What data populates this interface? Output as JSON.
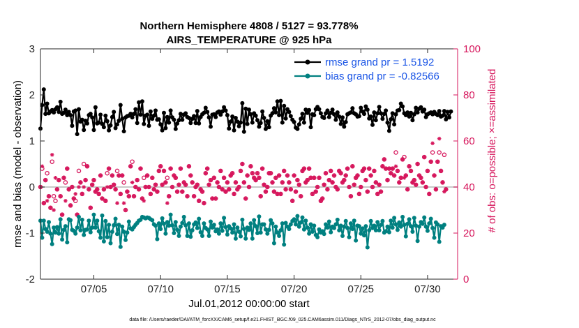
{
  "chart_data": {
    "type": "line",
    "title": "Northern Hemisphere 4808 / 5127 = 93.778%",
    "subtitle": "AIRS_TEMPERATURE @ 925 hPa",
    "xlabel": "Jul.01,2012 00:00:00 start",
    "ylabel": "rmse and bias (model - observation)",
    "ylabel_right": "# of obs: o=possible; ×=assimilated",
    "x_range": [
      1,
      32.25
    ],
    "ylim": [
      -2,
      3
    ],
    "ylim_right": [
      0,
      100
    ],
    "x_tick_positions": [
      5,
      10,
      15,
      20,
      25,
      30
    ],
    "x_tick_labels": [
      "07/05",
      "07/10",
      "07/15",
      "07/20",
      "07/25",
      "07/30"
    ],
    "y_ticks": [
      "-2",
      "-1",
      "0",
      "1",
      "2",
      "3"
    ],
    "y_ticks_right": [
      "0",
      "20",
      "40",
      "60",
      "80",
      "100"
    ],
    "footer": "data file: /Users/raeder/DAI/ATM_forcXX/CAM6_setup/f.e21.FHIST_BGC.f09_025.CAM6assim.011/Diags_NTrS_2012-07/obs_diag_output.nc",
    "colors": {
      "rmse": "#000000",
      "bias": "#008080",
      "obs": "#d6155b",
      "zero_line": "#c8c8c8",
      "legend_text": "#1a55e6"
    },
    "legend": [
      {
        "name": "rmse grand pr = 1.5192",
        "series": "rmse"
      },
      {
        "name": "bias grand pr = -0.82566",
        "series": "bias"
      }
    ],
    "series": [
      {
        "name": "rmse",
        "axis": "left",
        "values": [
          1.27,
          1.78,
          2.12,
          1.59,
          1.81,
          1.6,
          1.64,
          1.67,
          1.62,
          1.69,
          1.73,
          1.63,
          1.85,
          1.59,
          1.61,
          1.68,
          1.56,
          1.63,
          1.56,
          1.33,
          1.64,
          1.66,
          1.15,
          1.69,
          1.42,
          1.46,
          1.24,
          1.44,
          1.38,
          1.56,
          1.59,
          1.51,
          1.24,
          1.73,
          1.38,
          1.4,
          1.57,
          1.37,
          1.3,
          1.55,
          1.43,
          1.23,
          1.34,
          1.52,
          1.63,
          1.28,
          1.36,
          1.44,
          1.78,
          1.48,
          1.21,
          1.51,
          1.54,
          1.55,
          1.59,
          1.51,
          1.59,
          1.69,
          1.39,
          1.84,
          1.57,
          1.86,
          1.37,
          1.55,
          1.57,
          1.33,
          1.64,
          1.48,
          1.55,
          1.66,
          1.46,
          1.47,
          1.36,
          1.23,
          1.61,
          1.28,
          1.52,
          1.4,
          1.66,
          1.51,
          1.46,
          1.26,
          1.38,
          1.45,
          1.59,
          1.46,
          1.57,
          1.6,
          1.52,
          1.5,
          1.39,
          1.48,
          1.54,
          1.39,
          1.65,
          1.38,
          1.52,
          1.58,
          1.61,
          1.72,
          1.63,
          1.51,
          1.31,
          1.57,
          1.58,
          1.52,
          1.62,
          1.64,
          1.57,
          1.64,
          1.73,
          1.66,
          1.56,
          1.27,
          1.42,
          1.53,
          1.23,
          1.5,
          1.42,
          1.32,
          1.4,
          1.82,
          1.2,
          1.7,
          1.37,
          1.68,
          1.58,
          1.4,
          1.6,
          1.55,
          1.45,
          1.31,
          1.39,
          1.64,
          1.5,
          1.26,
          1.43,
          1.3,
          1.55,
          1.6,
          1.71,
          1.62,
          1.86,
          1.56,
          1.87,
          1.4,
          1.76,
          1.49,
          1.69,
          1.63,
          1.54,
          1.46,
          1.41,
          1.29,
          1.26,
          1.36,
          1.48,
          1.59,
          1.4,
          1.68,
          1.61,
          1.67,
          1.3,
          1.58,
          1.56,
          1.69,
          1.74,
          1.69,
          1.6,
          1.52,
          1.5,
          1.6,
          1.66,
          1.52,
          1.61,
          1.68,
          1.58,
          1.46,
          1.62,
          1.53,
          1.37,
          1.51,
          1.31,
          1.41,
          1.58,
          1.6,
          1.62,
          1.71,
          1.6,
          1.58,
          1.53,
          1.54,
          1.72,
          1.64,
          1.59,
          1.75,
          1.68,
          1.49,
          1.53,
          1.35,
          1.62,
          1.45,
          1.6,
          1.74,
          1.6,
          1.48,
          1.59,
          1.66,
          1.4,
          1.22,
          1.47,
          1.6,
          1.36,
          1.58,
          1.66,
          1.67,
          1.81,
          1.75,
          1.6,
          1.56,
          1.62,
          1.53,
          1.61,
          1.45,
          1.58,
          1.72,
          1.62,
          1.7,
          1.73,
          1.64,
          1.68,
          1.52,
          1.58,
          1.6,
          1.62,
          1.58,
          1.63,
          1.59,
          1.56,
          1.65,
          1.53,
          1.55,
          1.65,
          1.47,
          1.63,
          1.51,
          1.64
        ]
      },
      {
        "name": "bias",
        "axis": "left",
        "values": [
          -0.73,
          -1.1,
          -0.73,
          -0.91,
          -0.97,
          -0.76,
          -1.01,
          -1.24,
          -0.88,
          -0.99,
          -0.87,
          -1.01,
          -0.7,
          -1.14,
          -0.93,
          -0.85,
          -1.2,
          -0.7,
          -0.72,
          -0.93,
          -0.95,
          -1.01,
          -0.88,
          -0.65,
          -0.94,
          -0.71,
          -1.04,
          -0.93,
          -0.92,
          -0.73,
          -0.98,
          -0.88,
          -0.6,
          -0.88,
          -0.73,
          -0.96,
          -1.1,
          -0.62,
          -1.18,
          -0.74,
          -1.09,
          -0.82,
          -1.22,
          -0.97,
          -0.83,
          -0.69,
          -1.02,
          -0.82,
          -1.3,
          -0.86,
          -0.97,
          -1.15,
          -0.99,
          -0.75,
          -0.9,
          -0.92,
          -0.87,
          -0.82,
          -0.78,
          -0.73,
          -0.71,
          -0.65,
          -0.66,
          -0.68,
          -0.66,
          -0.67,
          -0.7,
          -0.72,
          -0.81,
          -0.84,
          -1.13,
          -0.79,
          -0.91,
          -0.68,
          -0.8,
          -1.01,
          -0.76,
          -0.84,
          -0.6,
          -0.83,
          -1.0,
          -0.76,
          -0.93,
          -1.06,
          -0.86,
          -0.78,
          -0.65,
          -0.83,
          -1.06,
          -0.79,
          -1.08,
          -0.94,
          -0.81,
          -0.77,
          -0.89,
          -0.69,
          -0.98,
          -1.06,
          -0.79,
          -0.89,
          -0.92,
          -1.06,
          -0.75,
          -0.88,
          -0.82,
          -0.96,
          -0.92,
          -1.01,
          -0.79,
          -0.95,
          -0.67,
          -0.87,
          -1.03,
          -0.85,
          -0.9,
          -0.99,
          -0.81,
          -1.12,
          -0.88,
          -0.97,
          -1.07,
          -0.71,
          -0.91,
          -1.12,
          -0.88,
          -0.93,
          -0.79,
          -1.12,
          -0.72,
          -0.85,
          -1.0,
          -0.64,
          -0.99,
          -0.81,
          -0.81,
          -0.92,
          -1.01,
          -0.93,
          -0.72,
          -0.79,
          -1.22,
          -0.86,
          -0.99,
          -1.06,
          -0.94,
          -0.79,
          -1.25,
          -0.78,
          -0.86,
          -0.91,
          -0.81,
          -0.74,
          -0.7,
          -0.81,
          -0.63,
          -0.86,
          -0.77,
          -0.66,
          -0.92,
          -0.73,
          -0.88,
          -1.01,
          -0.81,
          -0.97,
          -0.84,
          -1.04,
          -1.09,
          -0.92,
          -0.99,
          -0.96,
          -1.02,
          -0.81,
          -0.88,
          -0.75,
          -0.98,
          -0.86,
          -0.89,
          -0.81,
          -0.71,
          -0.94,
          -0.84,
          -1.06,
          -0.86,
          -0.74,
          -0.89,
          -1.09,
          -0.79,
          -0.91,
          -0.73,
          -1.16,
          -0.84,
          -0.85,
          -1.01,
          -0.9,
          -1.05,
          -0.85,
          -1.31,
          -0.94,
          -0.74,
          -0.89,
          -0.84,
          -0.94,
          -0.76,
          -0.94,
          -0.82,
          -0.74,
          -0.99,
          -0.96,
          -0.86,
          -0.98,
          -0.73,
          -0.88,
          -0.67,
          -0.81,
          -0.93,
          -0.77,
          -0.86,
          -0.65,
          -0.82,
          -1.07,
          -0.8,
          -0.7,
          -0.85,
          -0.97,
          -0.67,
          -0.84,
          -1.17,
          -0.86,
          -0.76,
          -0.8,
          -0.66,
          -0.86,
          -0.95,
          -0.79,
          -0.69,
          -0.89,
          -1.1,
          -0.77,
          -0.81,
          -1.19,
          -0.85,
          -0.88,
          -0.82
        ]
      },
      {
        "name": "possible",
        "axis": "right",
        "marker": "o",
        "values": [
          40,
          48,
          33,
          43,
          46,
          36,
          31,
          51,
          36,
          34,
          39,
          43,
          36,
          28,
          44,
          42,
          48,
          39,
          32,
          40,
          35,
          34,
          28,
          47,
          42,
          37,
          50,
          43,
          49,
          39,
          31,
          41,
          43,
          38,
          39,
          37,
          45,
          35,
          39,
          34,
          46,
          48,
          40,
          45,
          41,
          39,
          47,
          45,
          37,
          45,
          42,
          30,
          38,
          36,
          49,
          51,
          36,
          40,
          43,
          39,
          48,
          35,
          44,
          40,
          45,
          40,
          37,
          44,
          39,
          41,
          38,
          47,
          49,
          41,
          47,
          42,
          44,
          36,
          48,
          40,
          45,
          44,
          38,
          41,
          48,
          38,
          42,
          41,
          36,
          49,
          45,
          42,
          36,
          40,
          41,
          34,
          39,
          38,
          33,
          46,
          48,
          41,
          43,
          35,
          44,
          35,
          42,
          40,
          47,
          39,
          44,
          38,
          42,
          39,
          45,
          46,
          37,
          42,
          39,
          40,
          47,
          50,
          42,
          35,
          45,
          40,
          49,
          46,
          44,
          43,
          46,
          44,
          36,
          48,
          41,
          38,
          40,
          46,
          46,
          42,
          38,
          44,
          37,
          45,
          37,
          42,
          47,
          39,
          45,
          42,
          39,
          34,
          45,
          38,
          43,
          41,
          36,
          47,
          48,
          42,
          43,
          48,
          44,
          37,
          44,
          38,
          40,
          44,
          34,
          35,
          41,
          46,
          39,
          43,
          47,
          42,
          45,
          40,
          39,
          47,
          46,
          42,
          43,
          45,
          48,
          40,
          36,
          49,
          41,
          44,
          45,
          37,
          40,
          47,
          48,
          43,
          38,
          48,
          45,
          40,
          47,
          42,
          37,
          41,
          38,
          49,
          52,
          48,
          43,
          48,
          46,
          48,
          45,
          55,
          47,
          42,
          44,
          52,
          53,
          45,
          39,
          49,
          47,
          42,
          43,
          41,
          50,
          45,
          44,
          42,
          53,
          40,
          47,
          37,
          51,
          55,
          45,
          39,
          51,
          55,
          47,
          42,
          54,
          39
        ]
      },
      {
        "name": "assimilated",
        "axis": "right",
        "marker": "x",
        "values": [
          40,
          49,
          33,
          43,
          34,
          36,
          31,
          54,
          30,
          44,
          39,
          43,
          36,
          28,
          44,
          34,
          48,
          39,
          32,
          40,
          35,
          37,
          28,
          40,
          42,
          37,
          40,
          43,
          49,
          39,
          31,
          41,
          43,
          38,
          39,
          37,
          45,
          35,
          39,
          34,
          40,
          48,
          40,
          45,
          41,
          39,
          33,
          45,
          37,
          45,
          33,
          30,
          38,
          36,
          49,
          42,
          36,
          40,
          43,
          39,
          48,
          35,
          34,
          40,
          45,
          40,
          37,
          44,
          39,
          41,
          38,
          47,
          49,
          41,
          47,
          42,
          33,
          36,
          48,
          40,
          45,
          44,
          38,
          41,
          48,
          38,
          42,
          41,
          36,
          49,
          45,
          42,
          36,
          40,
          41,
          34,
          39,
          38,
          33,
          46,
          48,
          41,
          43,
          35,
          44,
          35,
          42,
          40,
          47,
          39,
          44,
          38,
          42,
          39,
          45,
          46,
          37,
          42,
          39,
          40,
          47,
          50,
          42,
          35,
          45,
          40,
          49,
          46,
          44,
          43,
          46,
          44,
          36,
          48,
          41,
          38,
          40,
          46,
          46,
          42,
          38,
          44,
          37,
          45,
          37,
          42,
          47,
          39,
          45,
          42,
          39,
          34,
          45,
          38,
          43,
          41,
          36,
          47,
          48,
          42,
          43,
          48,
          44,
          37,
          44,
          38,
          40,
          44,
          34,
          35,
          41,
          46,
          39,
          43,
          47,
          42,
          45,
          40,
          39,
          47,
          46,
          42,
          43,
          45,
          48,
          40,
          36,
          49,
          41,
          44,
          45,
          37,
          40,
          47,
          48,
          43,
          38,
          48,
          45,
          40,
          47,
          42,
          37,
          41,
          38,
          49,
          52,
          48,
          43,
          48,
          46,
          48,
          45,
          49,
          47,
          42,
          44,
          52,
          44,
          45,
          39,
          49,
          47,
          42,
          43,
          41,
          50,
          45,
          44,
          42,
          53,
          40,
          47,
          37,
          51,
          59,
          45,
          39,
          51,
          61,
          47,
          42,
          38,
          39
        ]
      }
    ]
  }
}
